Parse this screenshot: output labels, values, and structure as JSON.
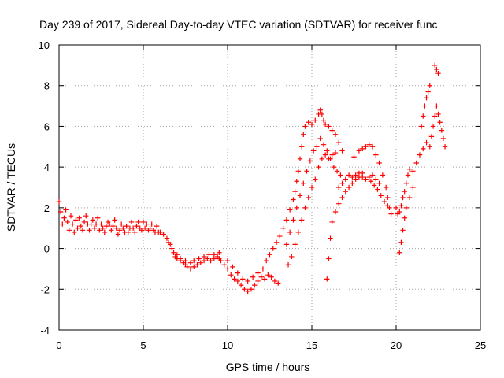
{
  "chart_data": {
    "type": "scatter",
    "title": "Day 239 of 2017, Sidereal Day-to-day VTEC variation (SDTVAR) for receiver func",
    "xlabel": "GPS time / hours",
    "ylabel": "SDTVAR / TECUs",
    "xlim": [
      0,
      25
    ],
    "ylim": [
      -4,
      10
    ],
    "xticks": [
      0,
      5,
      10,
      15,
      20,
      25
    ],
    "yticks": [
      -4,
      -2,
      0,
      2,
      4,
      6,
      8,
      10
    ],
    "grid": true,
    "marker": "+",
    "series": [
      {
        "name": "SDTVAR",
        "color": "#ff0000",
        "points": [
          [
            0.0,
            2.3
          ],
          [
            0.1,
            1.8
          ],
          [
            0.2,
            1.2
          ],
          [
            0.3,
            1.5
          ],
          [
            0.4,
            1.9
          ],
          [
            0.5,
            1.3
          ],
          [
            0.6,
            0.9
          ],
          [
            0.7,
            1.6
          ],
          [
            0.8,
            1.2
          ],
          [
            0.9,
            0.8
          ],
          [
            1.0,
            1.4
          ],
          [
            1.1,
            1.0
          ],
          [
            1.2,
            1.5
          ],
          [
            1.3,
            1.1
          ],
          [
            1.4,
            0.9
          ],
          [
            1.5,
            1.3
          ],
          [
            1.6,
            1.6
          ],
          [
            1.7,
            1.2
          ],
          [
            1.8,
            0.9
          ],
          [
            1.9,
            1.2
          ],
          [
            2.0,
            1.4
          ],
          [
            2.1,
            1.0
          ],
          [
            2.2,
            1.2
          ],
          [
            2.3,
            1.5
          ],
          [
            2.4,
            0.9
          ],
          [
            2.5,
            1.2
          ],
          [
            2.6,
            1.0
          ],
          [
            2.7,
            0.8
          ],
          [
            2.8,
            1.1
          ],
          [
            2.9,
            1.3
          ],
          [
            3.0,
            1.2
          ],
          [
            3.1,
            0.9
          ],
          [
            3.2,
            1.1
          ],
          [
            3.3,
            1.4
          ],
          [
            3.4,
            1.0
          ],
          [
            3.5,
            0.7
          ],
          [
            3.6,
            0.9
          ],
          [
            3.7,
            1.2
          ],
          [
            3.8,
            1.0
          ],
          [
            3.9,
            0.8
          ],
          [
            4.0,
            1.1
          ],
          [
            4.1,
            0.8
          ],
          [
            4.2,
            1.0
          ],
          [
            4.3,
            1.3
          ],
          [
            4.4,
            1.0
          ],
          [
            4.5,
            0.8
          ],
          [
            4.6,
            1.1
          ],
          [
            4.7,
            1.3
          ],
          [
            4.8,
            1.0
          ],
          [
            4.9,
            0.9
          ],
          [
            5.0,
            1.3
          ],
          [
            5.1,
            1.0
          ],
          [
            5.2,
            1.2
          ],
          [
            5.3,
            0.9
          ],
          [
            5.4,
            1.0
          ],
          [
            5.5,
            1.2
          ],
          [
            5.6,
            0.9
          ],
          [
            5.7,
            0.8
          ],
          [
            5.8,
            1.1
          ],
          [
            5.9,
            0.8
          ],
          [
            6.0,
            0.8
          ],
          [
            6.2,
            0.7
          ],
          [
            6.4,
            0.5
          ],
          [
            6.5,
            0.3
          ],
          [
            6.6,
            0.2
          ],
          [
            6.7,
            0.0
          ],
          [
            6.8,
            -0.2
          ],
          [
            6.9,
            -0.4
          ],
          [
            7.0,
            -0.5
          ],
          [
            7.2,
            -0.6
          ],
          [
            7.4,
            -0.7
          ],
          [
            7.5,
            -0.8
          ],
          [
            7.6,
            -0.9
          ],
          [
            7.8,
            -1.0
          ],
          [
            8.0,
            -0.9
          ],
          [
            8.2,
            -0.8
          ],
          [
            8.4,
            -0.7
          ],
          [
            8.6,
            -0.6
          ],
          [
            8.8,
            -0.5
          ],
          [
            9.0,
            -0.6
          ],
          [
            9.2,
            -0.5
          ],
          [
            9.4,
            -0.4
          ],
          [
            9.5,
            -0.5
          ],
          [
            9.6,
            -0.6
          ],
          [
            9.8,
            -0.8
          ],
          [
            10.0,
            -1.0
          ],
          [
            10.2,
            -1.3
          ],
          [
            10.4,
            -1.5
          ],
          [
            10.6,
            -1.6
          ],
          [
            10.8,
            -1.8
          ],
          [
            11.0,
            -2.0
          ],
          [
            11.2,
            -2.1
          ],
          [
            11.4,
            -2.0
          ],
          [
            11.6,
            -1.8
          ],
          [
            11.8,
            -1.6
          ],
          [
            12.0,
            -1.4
          ],
          [
            12.2,
            -1.5
          ],
          [
            12.4,
            -1.3
          ],
          [
            12.6,
            -1.4
          ],
          [
            12.8,
            -1.6
          ],
          [
            13.0,
            -1.7
          ],
          [
            7.0,
            -0.3
          ],
          [
            7.2,
            -0.5
          ],
          [
            7.5,
            -0.6
          ],
          [
            7.8,
            -0.7
          ],
          [
            8.0,
            -0.6
          ],
          [
            8.3,
            -0.5
          ],
          [
            8.6,
            -0.4
          ],
          [
            8.9,
            -0.3
          ],
          [
            9.2,
            -0.3
          ],
          [
            9.5,
            -0.2
          ],
          [
            10.0,
            -0.6
          ],
          [
            10.3,
            -0.9
          ],
          [
            10.6,
            -1.2
          ],
          [
            10.9,
            -1.5
          ],
          [
            11.2,
            -1.6
          ],
          [
            11.5,
            -1.4
          ],
          [
            11.8,
            -1.2
          ],
          [
            12.1,
            -1.0
          ],
          [
            12.3,
            -0.6
          ],
          [
            12.5,
            -0.3
          ],
          [
            12.7,
            0.0
          ],
          [
            12.9,
            0.3
          ],
          [
            13.1,
            0.6
          ],
          [
            13.3,
            1.0
          ],
          [
            13.5,
            1.4
          ],
          [
            13.7,
            1.9
          ],
          [
            13.9,
            2.4
          ],
          [
            14.0,
            2.8
          ],
          [
            14.1,
            3.3
          ],
          [
            14.2,
            3.8
          ],
          [
            14.3,
            4.4
          ],
          [
            14.4,
            5.0
          ],
          [
            14.5,
            5.6
          ],
          [
            14.6,
            6.0
          ],
          [
            14.8,
            6.2
          ],
          [
            15.0,
            6.1
          ],
          [
            15.2,
            6.3
          ],
          [
            15.4,
            6.6
          ],
          [
            15.5,
            6.8
          ],
          [
            15.6,
            6.6
          ],
          [
            15.7,
            6.3
          ],
          [
            15.8,
            6.1
          ],
          [
            16.0,
            6.0
          ],
          [
            16.2,
            5.8
          ],
          [
            16.4,
            5.6
          ],
          [
            16.6,
            5.2
          ],
          [
            16.8,
            4.8
          ],
          [
            13.5,
            0.2
          ],
          [
            13.7,
            0.8
          ],
          [
            13.9,
            1.4
          ],
          [
            14.1,
            2.0
          ],
          [
            14.3,
            2.6
          ],
          [
            14.5,
            3.2
          ],
          [
            14.7,
            3.8
          ],
          [
            14.9,
            4.3
          ],
          [
            15.1,
            4.8
          ],
          [
            15.3,
            5.0
          ],
          [
            15.5,
            5.4
          ],
          [
            15.7,
            5.1
          ],
          [
            15.9,
            4.8
          ],
          [
            16.1,
            4.4
          ],
          [
            16.3,
            4.0
          ],
          [
            16.5,
            3.8
          ],
          [
            16.7,
            3.6
          ],
          [
            13.6,
            -0.8
          ],
          [
            13.8,
            -0.4
          ],
          [
            14.0,
            0.2
          ],
          [
            14.2,
            0.8
          ],
          [
            14.4,
            1.4
          ],
          [
            14.6,
            2.0
          ],
          [
            14.8,
            2.5
          ],
          [
            15.0,
            3.0
          ],
          [
            15.2,
            3.4
          ],
          [
            15.4,
            4.0
          ],
          [
            15.6,
            4.4
          ],
          [
            15.8,
            4.6
          ],
          [
            16.0,
            4.4
          ],
          [
            16.2,
            4.6
          ],
          [
            16.4,
            4.7
          ],
          [
            15.9,
            -1.5
          ],
          [
            16.0,
            -0.5
          ],
          [
            16.1,
            0.5
          ],
          [
            16.2,
            1.3
          ],
          [
            16.4,
            1.8
          ],
          [
            16.6,
            2.2
          ],
          [
            16.8,
            2.5
          ],
          [
            17.0,
            2.8
          ],
          [
            17.2,
            3.0
          ],
          [
            17.4,
            3.2
          ],
          [
            17.6,
            3.4
          ],
          [
            17.8,
            3.5
          ],
          [
            18.0,
            3.5
          ],
          [
            18.2,
            3.4
          ],
          [
            18.4,
            3.5
          ],
          [
            18.6,
            3.6
          ],
          [
            18.8,
            3.4
          ],
          [
            19.0,
            3.2
          ],
          [
            16.6,
            3.0
          ],
          [
            16.8,
            3.2
          ],
          [
            17.0,
            3.4
          ],
          [
            17.2,
            3.6
          ],
          [
            17.4,
            3.5
          ],
          [
            17.6,
            3.6
          ],
          [
            17.8,
            3.7
          ],
          [
            18.0,
            3.7
          ],
          [
            17.5,
            4.5
          ],
          [
            17.8,
            4.8
          ],
          [
            18.0,
            4.9
          ],
          [
            18.2,
            5.0
          ],
          [
            18.4,
            5.1
          ],
          [
            18.6,
            5.0
          ],
          [
            18.8,
            4.6
          ],
          [
            19.0,
            4.2
          ],
          [
            19.2,
            3.6
          ],
          [
            19.4,
            3.0
          ],
          [
            19.5,
            2.5
          ],
          [
            19.6,
            2.0
          ],
          [
            19.7,
            1.7
          ],
          [
            18.5,
            3.3
          ],
          [
            18.7,
            3.1
          ],
          [
            18.9,
            2.9
          ],
          [
            19.1,
            2.6
          ],
          [
            19.3,
            2.3
          ],
          [
            19.5,
            2.1
          ],
          [
            20.0,
            2.0
          ],
          [
            20.1,
            1.7
          ],
          [
            20.2,
            1.8
          ],
          [
            20.3,
            2.1
          ],
          [
            20.4,
            2.5
          ],
          [
            20.5,
            2.8
          ],
          [
            20.6,
            3.2
          ],
          [
            20.7,
            3.6
          ],
          [
            20.8,
            3.9
          ],
          [
            20.2,
            -0.2
          ],
          [
            20.3,
            0.3
          ],
          [
            20.4,
            0.9
          ],
          [
            20.5,
            1.5
          ],
          [
            20.6,
            2.0
          ],
          [
            20.8,
            2.5
          ],
          [
            21.0,
            3.0
          ],
          [
            21.0,
            3.8
          ],
          [
            21.2,
            4.2
          ],
          [
            21.4,
            4.6
          ],
          [
            21.6,
            4.9
          ],
          [
            21.8,
            5.2
          ],
          [
            22.0,
            5.0
          ],
          [
            21.5,
            6.0
          ],
          [
            21.6,
            6.5
          ],
          [
            21.7,
            7.0
          ],
          [
            21.8,
            7.4
          ],
          [
            21.9,
            7.7
          ],
          [
            22.0,
            8.0
          ],
          [
            22.1,
            5.5
          ],
          [
            22.2,
            6.0
          ],
          [
            22.3,
            6.5
          ],
          [
            22.4,
            7.0
          ],
          [
            22.5,
            6.6
          ],
          [
            22.6,
            6.2
          ],
          [
            22.7,
            5.8
          ],
          [
            22.8,
            5.4
          ],
          [
            22.9,
            5.0
          ],
          [
            22.3,
            9.0
          ],
          [
            22.4,
            8.8
          ],
          [
            22.5,
            8.6
          ]
        ]
      }
    ]
  }
}
